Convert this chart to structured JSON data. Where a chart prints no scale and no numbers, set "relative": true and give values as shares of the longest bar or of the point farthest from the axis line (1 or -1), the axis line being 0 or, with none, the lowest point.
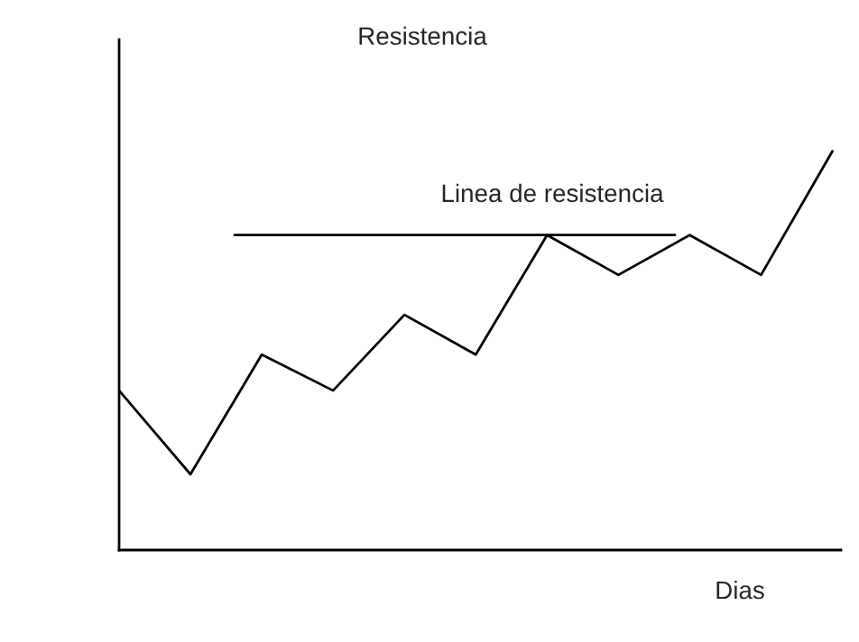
{
  "chart_data": {
    "type": "line",
    "title": "Resistencia",
    "xlabel": "Dias",
    "relative": true,
    "categories": [
      null,
      null,
      null,
      null,
      null,
      null,
      null,
      null,
      null,
      null,
      null
    ],
    "series": [
      {
        "color": "#000000",
        "values": [
          0.4,
          0.19,
          0.49,
          0.4,
          0.59,
          0.49,
          0.79,
          0.69,
          0.79,
          0.69,
          1.0
        ]
      }
    ],
    "ref_lines": [
      {
        "axis": "y",
        "value": 0.79,
        "label": "Linea de resistencia",
        "color": "#000000",
        "line_style": "solid"
      }
    ],
    "legend": false,
    "marker": "none",
    "line_style": "solid"
  }
}
